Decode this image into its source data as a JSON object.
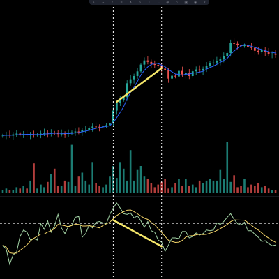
{
  "theme": {
    "background": "#000000",
    "up_color": "#26a69a",
    "down_color": "#ef5350",
    "ma_color": "#2962ff",
    "trendline_color": "#f5e76a",
    "osc_line_color": "#a5d6a7",
    "osc_signal_color": "#f5d66a",
    "level_line_color": "#c8c8c8",
    "crosshair_color": "#ffffff",
    "toolbar_bg": "#1e222d"
  },
  "toolbar": {
    "icons": [
      "cursor-icon",
      "crosshair-icon",
      "trendline-icon",
      "fib-icon",
      "pattern-icon",
      "brush-icon",
      "text-icon",
      "measure-icon",
      "zoom-icon",
      "magnet-icon",
      "lock-icon",
      "eye-icon",
      "trash-icon"
    ]
  },
  "panes": {
    "price": {
      "y_range": [
        0,
        100
      ]
    },
    "oscillator": {
      "y_range": [
        0,
        100
      ],
      "upper_level": 70,
      "lower_level": 30
    }
  },
  "annotations": {
    "price_trendline": {
      "from_bar": 33,
      "from_value": 38,
      "to_bar": 46,
      "to_value": 72
    },
    "osc_trendline": {
      "from_bar": 32,
      "from_value": 75,
      "to_bar": 46,
      "to_value": 38
    },
    "vertical_markers": [
      32,
      46
    ]
  },
  "chart_data": {
    "type": "candlestick",
    "bar_count": 80,
    "close_values": [
      4.0,
      4.8,
      3.9,
      5.2,
      6.0,
      5.1,
      5.5,
      4.6,
      5.3,
      4.8,
      4.9,
      5.9,
      6.7,
      6.1,
      6.8,
      6.4,
      5.5,
      5.9,
      5.7,
      6.5,
      7.3,
      8.1,
      7.8,
      9.3,
      9.8,
      11.5,
      13.1,
      12.9,
      12.5,
      13.3,
      14.4,
      16.5,
      29.2,
      36.8,
      40.0,
      42.7,
      56.8,
      60.8,
      64.1,
      68.8,
      75.6,
      79.8,
      78.3,
      76.1,
      75.3,
      74.3,
      71.5,
      70.0,
      61.5,
      64.4,
      63.6,
      69.3,
      65.7,
      67.5,
      64.1,
      68.9,
      70.7,
      69.6,
      71.2,
      74.6,
      77.2,
      77.6,
      79.2,
      80.9,
      84.3,
      87.3,
      97.8,
      96.6,
      95.3,
      94.4,
      95.0,
      93.3,
      92.5,
      89.6,
      88.6,
      90.2,
      88.1,
      86.3,
      86.7,
      85.5
    ],
    "volume": [
      2,
      3,
      2,
      2,
      4,
      3,
      5,
      3,
      9,
      22,
      3,
      6,
      4,
      8,
      14,
      18,
      5,
      5,
      9,
      8,
      36,
      5,
      12,
      15,
      9,
      6,
      23,
      7,
      5,
      4,
      6,
      12,
      20,
      11,
      23,
      18,
      9,
      32,
      9,
      17,
      20,
      12,
      10,
      7,
      4,
      6,
      8,
      10,
      3,
      4,
      7,
      10,
      5,
      10,
      5,
      6,
      4,
      9,
      7,
      9,
      10,
      9,
      9,
      17,
      10,
      38,
      8,
      13,
      4,
      5,
      10,
      4,
      6,
      5,
      7,
      4,
      5,
      3,
      2,
      2
    ],
    "oscillator_values": [
      40,
      34,
      13,
      26,
      30,
      52,
      61,
      58,
      47,
      49,
      47,
      70,
      62,
      74,
      58,
      67,
      83,
      64,
      56,
      66,
      68,
      79,
      80,
      51,
      56,
      68,
      64,
      72,
      73,
      71,
      70,
      83,
      92,
      99,
      92,
      84,
      83,
      85,
      78,
      81,
      74,
      65,
      73,
      60,
      58,
      47,
      44,
      31,
      40,
      50,
      50,
      49,
      59,
      59,
      50,
      52,
      57,
      54,
      56,
      61,
      60,
      61,
      71,
      69,
      73,
      79,
      84,
      76,
      70,
      68,
      72,
      60,
      60,
      55,
      51,
      45,
      46,
      42,
      39,
      40
    ]
  }
}
